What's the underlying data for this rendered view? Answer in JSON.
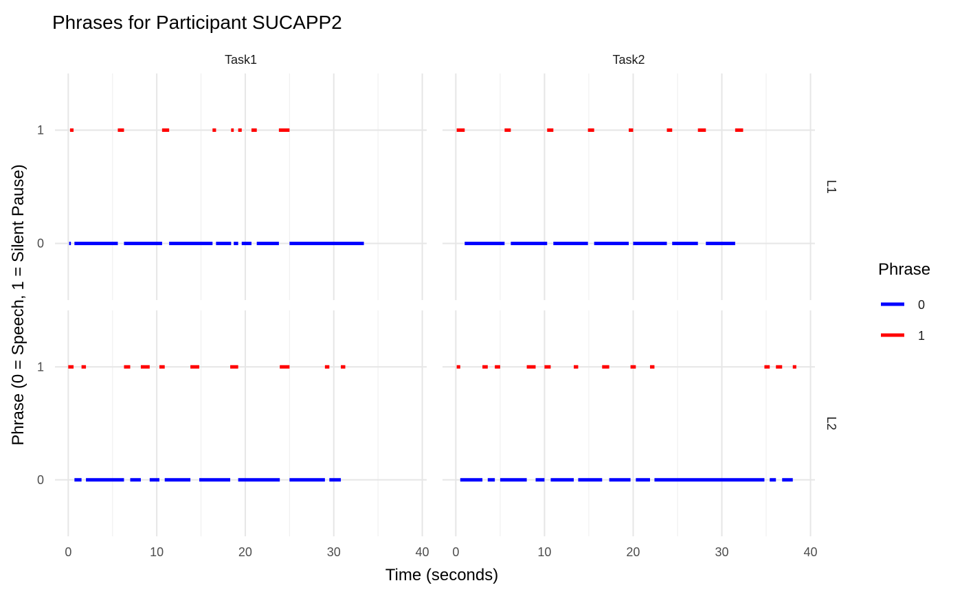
{
  "chart_data": {
    "type": "line",
    "title": "Phrases for Participant SUCAPP2",
    "xlabel": "Time (seconds)",
    "ylabel": "Phrase (0 = Speech, 1 = Silent Pause)",
    "xlim": [
      -1.5,
      40.5
    ],
    "ylim": [
      -0.5,
      1.5
    ],
    "x_ticks": [
      0,
      10,
      20,
      30,
      40
    ],
    "x_tick_labels": [
      "0",
      "10",
      "20",
      "30",
      "40"
    ],
    "y_ticks": [
      0,
      1
    ],
    "y_tick_labels": [
      "0",
      "1"
    ],
    "grid": true,
    "legend": {
      "title": "Phrase",
      "position": "right",
      "entries": [
        {
          "label": "0",
          "color": "#0000ff"
        },
        {
          "label": "1",
          "color": "#ff0000"
        }
      ]
    },
    "colors": {
      "0": "#0000ff",
      "1": "#ff0000"
    },
    "col_facets": [
      "Task1",
      "Task2"
    ],
    "row_facets": [
      "L1",
      "L2"
    ],
    "panels": [
      {
        "col": "Task1",
        "row": "L1",
        "series": [
          {
            "phrase": "0",
            "segments": [
              [
                0.1,
                0.3
              ],
              [
                0.7,
                5.6
              ],
              [
                6.3,
                10.6
              ],
              [
                11.4,
                16.3
              ],
              [
                16.7,
                18.4
              ],
              [
                18.7,
                19.2
              ],
              [
                19.6,
                20.7
              ],
              [
                21.3,
                23.8
              ],
              [
                25.0,
                33.4
              ]
            ]
          },
          {
            "phrase": "1",
            "segments": [
              [
                0.2,
                0.6
              ],
              [
                5.6,
                6.3
              ],
              [
                10.6,
                11.4
              ],
              [
                16.3,
                16.7
              ],
              [
                18.4,
                18.7
              ],
              [
                19.2,
                19.6
              ],
              [
                20.7,
                21.3
              ],
              [
                23.8,
                25.0
              ]
            ]
          }
        ]
      },
      {
        "col": "Task2",
        "row": "L1",
        "series": [
          {
            "phrase": "0",
            "segments": [
              [
                1.0,
                5.5
              ],
              [
                6.2,
                10.3
              ],
              [
                11.0,
                14.9
              ],
              [
                15.6,
                19.5
              ],
              [
                20.0,
                23.8
              ],
              [
                24.4,
                27.3
              ],
              [
                28.2,
                31.5
              ]
            ]
          },
          {
            "phrase": "1",
            "segments": [
              [
                0.1,
                1.0
              ],
              [
                5.5,
                6.2
              ],
              [
                10.3,
                11.0
              ],
              [
                14.9,
                15.6
              ],
              [
                19.5,
                20.0
              ],
              [
                23.8,
                24.4
              ],
              [
                27.3,
                28.2
              ],
              [
                31.5,
                32.4
              ]
            ]
          }
        ]
      },
      {
        "col": "Task1",
        "row": "L2",
        "series": [
          {
            "phrase": "0",
            "segments": [
              [
                0.7,
                1.5
              ],
              [
                2.0,
                6.3
              ],
              [
                7.0,
                8.2
              ],
              [
                9.2,
                10.3
              ],
              [
                10.9,
                13.8
              ],
              [
                14.8,
                18.3
              ],
              [
                19.2,
                23.9
              ],
              [
                25.0,
                29.0
              ],
              [
                29.5,
                30.8
              ]
            ]
          },
          {
            "phrase": "1",
            "segments": [
              [
                0.0,
                0.6
              ],
              [
                1.5,
                2.0
              ],
              [
                6.3,
                7.0
              ],
              [
                8.2,
                9.2
              ],
              [
                10.3,
                10.9
              ],
              [
                13.8,
                14.8
              ],
              [
                18.3,
                19.2
              ],
              [
                23.9,
                25.0
              ],
              [
                29.0,
                29.5
              ],
              [
                30.8,
                31.3
              ]
            ]
          }
        ]
      },
      {
        "col": "Task2",
        "row": "L2",
        "series": [
          {
            "phrase": "0",
            "segments": [
              [
                0.5,
                3.0
              ],
              [
                3.6,
                4.4
              ],
              [
                5.0,
                8.0
              ],
              [
                9.0,
                10.0
              ],
              [
                10.7,
                13.3
              ],
              [
                13.8,
                16.5
              ],
              [
                17.3,
                19.7
              ],
              [
                20.3,
                21.9
              ],
              [
                22.4,
                34.8
              ],
              [
                35.4,
                36.1
              ],
              [
                36.8,
                38.0
              ]
            ]
          },
          {
            "phrase": "1",
            "segments": [
              [
                0.1,
                0.5
              ],
              [
                3.0,
                3.6
              ],
              [
                4.4,
                5.0
              ],
              [
                8.0,
                9.0
              ],
              [
                10.0,
                10.7
              ],
              [
                13.3,
                13.8
              ],
              [
                16.5,
                17.3
              ],
              [
                19.7,
                20.3
              ],
              [
                21.9,
                22.4
              ],
              [
                34.8,
                35.4
              ],
              [
                36.1,
                36.8
              ],
              [
                38.0,
                38.4
              ]
            ]
          }
        ]
      }
    ]
  }
}
